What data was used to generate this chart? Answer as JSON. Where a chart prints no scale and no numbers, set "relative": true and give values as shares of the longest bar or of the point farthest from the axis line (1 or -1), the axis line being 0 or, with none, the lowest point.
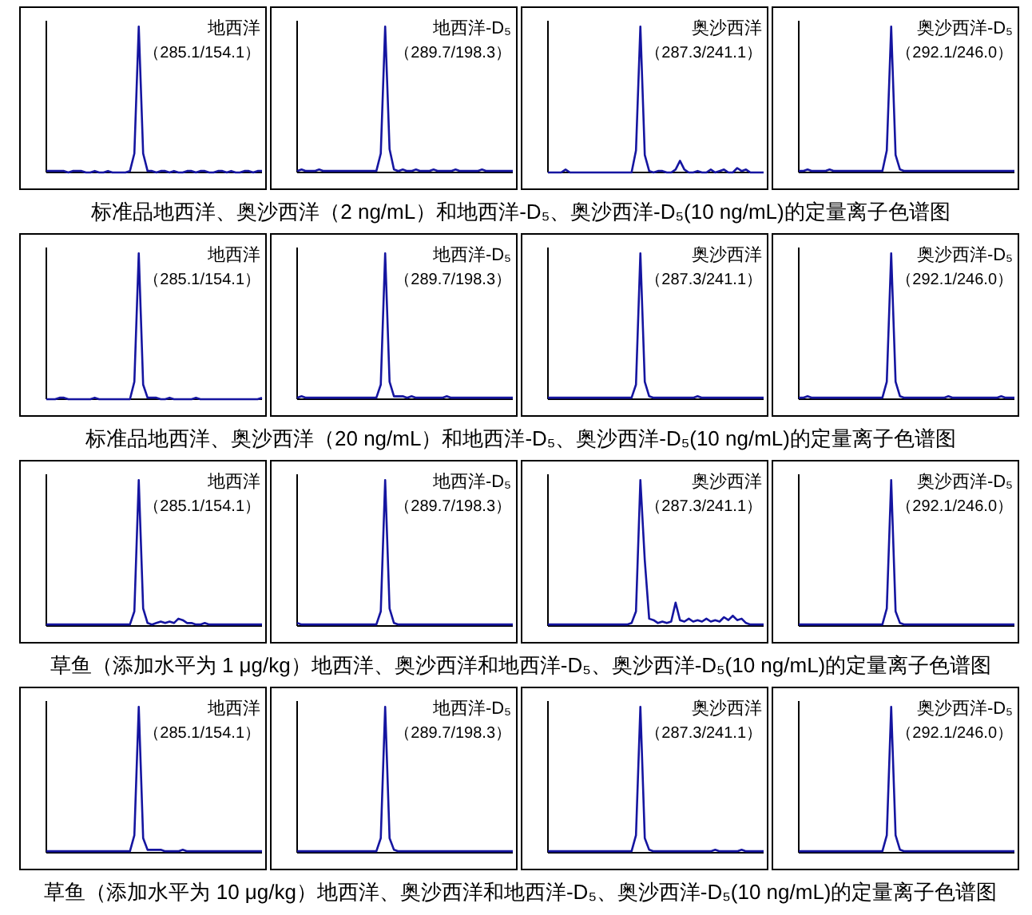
{
  "chart_data": [
    {
      "type": "line",
      "relative": true,
      "color": "#1515a0",
      "annotations": [
        "地西洋",
        "（285.1/154.1）"
      ],
      "categories": [
        null,
        null,
        null,
        null,
        null,
        null,
        null,
        null,
        null,
        null,
        null,
        null,
        null,
        null,
        null,
        null,
        null,
        null,
        null,
        null,
        null,
        null,
        null,
        null,
        null,
        null,
        null,
        null,
        null,
        null,
        null,
        null,
        null,
        null,
        null,
        null,
        null,
        null,
        null,
        null,
        null,
        null,
        null,
        null,
        null,
        null,
        null,
        null,
        null,
        null
      ],
      "values": [
        0.01,
        0.01,
        0.01,
        0.01,
        0.01,
        0,
        0.01,
        0.01,
        0.01,
        0,
        0,
        0.01,
        0,
        0,
        0.01,
        0,
        0,
        0,
        0,
        0.01,
        0.13,
        1,
        0.13,
        0.01,
        0.01,
        0,
        0.01,
        0.01,
        0,
        0.01,
        0,
        0,
        0.01,
        0.01,
        0,
        0.01,
        0.01,
        0,
        0,
        0.01,
        0.01,
        0,
        0.01,
        0,
        0,
        0.01,
        0.01,
        0,
        0.01,
        0.01
      ]
    },
    {
      "type": "line",
      "relative": true,
      "color": "#1515a0",
      "annotations": [
        "地西洋-D₅",
        "（289.7/198.3）"
      ],
      "categories": [
        null,
        null,
        null,
        null,
        null,
        null,
        null,
        null,
        null,
        null,
        null,
        null,
        null,
        null,
        null,
        null,
        null,
        null,
        null,
        null,
        null,
        null,
        null,
        null,
        null,
        null,
        null,
        null,
        null,
        null,
        null,
        null,
        null,
        null,
        null,
        null,
        null,
        null,
        null,
        null,
        null,
        null,
        null,
        null,
        null,
        null,
        null,
        null,
        null,
        null
      ],
      "values": [
        0.01,
        0.02,
        0.01,
        0.01,
        0.01,
        0.02,
        0.01,
        0.01,
        0.01,
        0.01,
        0.01,
        0.01,
        0.01,
        0.01,
        0.01,
        0.01,
        0.01,
        0.01,
        0.01,
        0.13,
        1,
        0.16,
        0.02,
        0.01,
        0.02,
        0.01,
        0.01,
        0.02,
        0.01,
        0.01,
        0.01,
        0.02,
        0.01,
        0.01,
        0.01,
        0.01,
        0.02,
        0.01,
        0.01,
        0.01,
        0.01,
        0.01,
        0.02,
        0.01,
        0.01,
        0.01,
        0.01,
        0.01,
        0.01,
        0.01
      ]
    },
    {
      "type": "line",
      "relative": true,
      "color": "#1515a0",
      "annotations": [
        "奥沙西洋",
        "（287.3/241.1）"
      ],
      "categories": [
        null,
        null,
        null,
        null,
        null,
        null,
        null,
        null,
        null,
        null,
        null,
        null,
        null,
        null,
        null,
        null,
        null,
        null,
        null,
        null,
        null,
        null,
        null,
        null,
        null,
        null,
        null,
        null,
        null,
        null,
        null,
        null,
        null,
        null,
        null,
        null,
        null,
        null,
        null,
        null,
        null,
        null,
        null,
        null,
        null,
        null,
        null,
        null,
        null,
        null
      ],
      "values": [
        0,
        0,
        0,
        0,
        0.02,
        0,
        0,
        0,
        0,
        0,
        0,
        0,
        0,
        0,
        0,
        0,
        0,
        0,
        0,
        0,
        0.15,
        1,
        0.12,
        0.01,
        0,
        0.01,
        0.01,
        0,
        0,
        0.02,
        0.08,
        0.02,
        0,
        0,
        0.01,
        0,
        0,
        0.02,
        0,
        0.01,
        0.02,
        0,
        0,
        0.03,
        0.01,
        0.02,
        0,
        0,
        0,
        0
      ]
    },
    {
      "type": "line",
      "relative": true,
      "color": "#1515a0",
      "annotations": [
        "奥沙西洋-D₅",
        "（292.1/246.0）"
      ],
      "categories": [
        null,
        null,
        null,
        null,
        null,
        null,
        null,
        null,
        null,
        null,
        null,
        null,
        null,
        null,
        null,
        null,
        null,
        null,
        null,
        null,
        null,
        null,
        null,
        null,
        null,
        null,
        null,
        null,
        null,
        null,
        null,
        null,
        null,
        null,
        null,
        null,
        null,
        null,
        null,
        null,
        null,
        null,
        null,
        null,
        null,
        null,
        null,
        null,
        null,
        null
      ],
      "values": [
        0.01,
        0.01,
        0.02,
        0.01,
        0.01,
        0.01,
        0.01,
        0.02,
        0.01,
        0.01,
        0.01,
        0.01,
        0.01,
        0.01,
        0.01,
        0.01,
        0.01,
        0.01,
        0.01,
        0.01,
        0.15,
        1,
        0.12,
        0.02,
        0.01,
        0.01,
        0.01,
        0.01,
        0.01,
        0.01,
        0.01,
        0.01,
        0.01,
        0.01,
        0.01,
        0.01,
        0.01,
        0.01,
        0.01,
        0.01,
        0.01,
        0.01,
        0.01,
        0.01,
        0.01,
        0.01,
        0.01,
        0.01,
        0.01,
        0.01
      ]
    },
    {
      "type": "other",
      "title": "标准品地西洋、奥沙西洋（2 ng/mL）和地西洋-D₅、奥沙西洋-D₅(10 ng/mL)的定量离子色谱图"
    },
    {
      "type": "line",
      "relative": true,
      "color": "#1515a0",
      "annotations": [
        "地西洋",
        "（285.1/154.1）"
      ],
      "categories": [
        null,
        null,
        null,
        null,
        null,
        null,
        null,
        null,
        null,
        null,
        null,
        null,
        null,
        null,
        null,
        null,
        null,
        null,
        null,
        null,
        null,
        null,
        null,
        null,
        null,
        null,
        null,
        null,
        null,
        null,
        null,
        null,
        null,
        null,
        null,
        null,
        null,
        null,
        null,
        null,
        null,
        null,
        null,
        null,
        null,
        null,
        null,
        null,
        null,
        null
      ],
      "values": [
        0,
        0,
        0,
        0.01,
        0.01,
        0,
        0,
        0,
        0,
        0,
        0,
        0.01,
        0,
        0,
        0,
        0,
        0,
        0,
        0,
        0,
        0.12,
        1,
        0.1,
        0.01,
        0.01,
        0.01,
        0,
        0,
        0.01,
        0,
        0,
        0,
        0,
        0,
        0.01,
        0,
        0,
        0,
        0,
        0,
        0,
        0,
        0,
        0,
        0,
        0,
        0,
        0,
        0,
        0.01
      ]
    },
    {
      "type": "line",
      "relative": true,
      "color": "#1515a0",
      "annotations": [
        "地西洋-D₅",
        "（289.7/198.3）"
      ],
      "categories": [
        null,
        null,
        null,
        null,
        null,
        null,
        null,
        null,
        null,
        null,
        null,
        null,
        null,
        null,
        null,
        null,
        null,
        null,
        null,
        null,
        null,
        null,
        null,
        null,
        null,
        null,
        null,
        null,
        null,
        null,
        null,
        null,
        null,
        null,
        null,
        null,
        null,
        null,
        null,
        null,
        null,
        null,
        null,
        null,
        null,
        null,
        null,
        null,
        null,
        null
      ],
      "values": [
        0.01,
        0.02,
        0.01,
        0.01,
        0.01,
        0.01,
        0.01,
        0.01,
        0.01,
        0.01,
        0.01,
        0.01,
        0.01,
        0.01,
        0.01,
        0.01,
        0.01,
        0.01,
        0.01,
        0.1,
        1,
        0.12,
        0.02,
        0.02,
        0.02,
        0.01,
        0.02,
        0.01,
        0.01,
        0.01,
        0.01,
        0.01,
        0.01,
        0.01,
        0.02,
        0.01,
        0.01,
        0.01,
        0.01,
        0.01,
        0.01,
        0.01,
        0.01,
        0.01,
        0.01,
        0.01,
        0.01,
        0.01,
        0.01,
        0.01
      ]
    },
    {
      "type": "line",
      "relative": true,
      "color": "#1515a0",
      "annotations": [
        "奥沙西洋",
        "（287.3/241.1）"
      ],
      "categories": [
        null,
        null,
        null,
        null,
        null,
        null,
        null,
        null,
        null,
        null,
        null,
        null,
        null,
        null,
        null,
        null,
        null,
        null,
        null,
        null,
        null,
        null,
        null,
        null,
        null,
        null,
        null,
        null,
        null,
        null,
        null,
        null,
        null,
        null,
        null,
        null,
        null,
        null,
        null,
        null,
        null,
        null,
        null,
        null,
        null,
        null,
        null,
        null,
        null,
        null
      ],
      "values": [
        0.01,
        0.01,
        0.01,
        0.01,
        0.01,
        0.01,
        0.01,
        0.01,
        0.01,
        0.01,
        0.01,
        0.01,
        0.01,
        0.01,
        0.01,
        0.01,
        0.01,
        0.01,
        0.01,
        0.01,
        0.1,
        1,
        0.12,
        0.02,
        0.01,
        0.01,
        0.01,
        0.01,
        0.01,
        0.01,
        0.01,
        0.01,
        0.01,
        0.01,
        0.02,
        0.01,
        0.01,
        0.01,
        0.01,
        0.01,
        0.01,
        0.01,
        0.01,
        0.01,
        0.01,
        0.01,
        0.01,
        0.01,
        0.01,
        0.01
      ]
    },
    {
      "type": "line",
      "relative": true,
      "color": "#1515a0",
      "annotations": [
        "奥沙西洋-D₅",
        "（292.1/246.0）"
      ],
      "categories": [
        null,
        null,
        null,
        null,
        null,
        null,
        null,
        null,
        null,
        null,
        null,
        null,
        null,
        null,
        null,
        null,
        null,
        null,
        null,
        null,
        null,
        null,
        null,
        null,
        null,
        null,
        null,
        null,
        null,
        null,
        null,
        null,
        null,
        null,
        null,
        null,
        null,
        null,
        null,
        null,
        null,
        null,
        null,
        null,
        null,
        null,
        null,
        null,
        null,
        null
      ],
      "values": [
        0.01,
        0.01,
        0.02,
        0.01,
        0.01,
        0.01,
        0.01,
        0.01,
        0.01,
        0.01,
        0.01,
        0.01,
        0.01,
        0.01,
        0.01,
        0.01,
        0.01,
        0.01,
        0.01,
        0.01,
        0.12,
        1,
        0.12,
        0.02,
        0.01,
        0.01,
        0.01,
        0.01,
        0.01,
        0.01,
        0.01,
        0.01,
        0.01,
        0.01,
        0.02,
        0.01,
        0.01,
        0.01,
        0.01,
        0.01,
        0.01,
        0.01,
        0.01,
        0.01,
        0.01,
        0.01,
        0.02,
        0.01,
        0.01,
        0.01
      ]
    },
    {
      "type": "other",
      "title": "标准品地西洋、奥沙西洋（20 ng/mL）和地西洋-D₅、奥沙西洋-D₅(10 ng/mL)的定量离子色谱图"
    },
    {
      "type": "line",
      "relative": true,
      "color": "#1515a0",
      "annotations": [
        "地西洋",
        "（285.1/154.1）"
      ],
      "categories": [
        null,
        null,
        null,
        null,
        null,
        null,
        null,
        null,
        null,
        null,
        null,
        null,
        null,
        null,
        null,
        null,
        null,
        null,
        null,
        null,
        null,
        null,
        null,
        null,
        null,
        null,
        null,
        null,
        null,
        null,
        null,
        null,
        null,
        null,
        null,
        null,
        null,
        null,
        null,
        null,
        null,
        null,
        null,
        null,
        null,
        null,
        null,
        null,
        null,
        null
      ],
      "values": [
        0.01,
        0.01,
        0.01,
        0.01,
        0.01,
        0.01,
        0.01,
        0.01,
        0.01,
        0.01,
        0.01,
        0.01,
        0.01,
        0.01,
        0.01,
        0.01,
        0.01,
        0.01,
        0.01,
        0.01,
        0.1,
        1,
        0.12,
        0.02,
        0.01,
        0.02,
        0.03,
        0.02,
        0.03,
        0.02,
        0.05,
        0.04,
        0.02,
        0.02,
        0.01,
        0.01,
        0.02,
        0.01,
        0.01,
        0.01,
        0.01,
        0.01,
        0.01,
        0.01,
        0.01,
        0.01,
        0.01,
        0.01,
        0.01,
        0.01
      ]
    },
    {
      "type": "line",
      "relative": true,
      "color": "#1515a0",
      "annotations": [
        "地西洋-D₅",
        "（289.7/198.3）"
      ],
      "categories": [
        null,
        null,
        null,
        null,
        null,
        null,
        null,
        null,
        null,
        null,
        null,
        null,
        null,
        null,
        null,
        null,
        null,
        null,
        null,
        null,
        null,
        null,
        null,
        null,
        null,
        null,
        null,
        null,
        null,
        null,
        null,
        null,
        null,
        null,
        null,
        null,
        null,
        null,
        null,
        null,
        null,
        null,
        null,
        null,
        null,
        null,
        null,
        null,
        null,
        null
      ],
      "values": [
        0.02,
        0.01,
        0.01,
        0.01,
        0.01,
        0.01,
        0.01,
        0.01,
        0.01,
        0.01,
        0.01,
        0.01,
        0.01,
        0.01,
        0.01,
        0.01,
        0.01,
        0.01,
        0.01,
        0.1,
        1,
        0.12,
        0.02,
        0.01,
        0.01,
        0.01,
        0.01,
        0.01,
        0.01,
        0.01,
        0.01,
        0.01,
        0.01,
        0.01,
        0.01,
        0.01,
        0.01,
        0.01,
        0.01,
        0.01,
        0.01,
        0.01,
        0.01,
        0.01,
        0.01,
        0.01,
        0.01,
        0.01,
        0.01,
        0.01
      ]
    },
    {
      "type": "line",
      "relative": true,
      "color": "#1515a0",
      "annotations": [
        "奥沙西洋",
        "（287.3/241.1）"
      ],
      "categories": [
        null,
        null,
        null,
        null,
        null,
        null,
        null,
        null,
        null,
        null,
        null,
        null,
        null,
        null,
        null,
        null,
        null,
        null,
        null,
        null,
        null,
        null,
        null,
        null,
        null,
        null,
        null,
        null,
        null,
        null,
        null,
        null,
        null,
        null,
        null,
        null,
        null,
        null,
        null,
        null,
        null,
        null,
        null,
        null,
        null,
        null,
        null,
        null,
        null,
        null
      ],
      "values": [
        0.01,
        0.01,
        0.01,
        0.01,
        0.01,
        0.01,
        0.01,
        0.01,
        0.01,
        0.01,
        0.01,
        0.01,
        0.01,
        0.01,
        0.01,
        0.01,
        0.01,
        0.01,
        0.01,
        0.02,
        0.1,
        1,
        0.45,
        0.05,
        0.04,
        0.02,
        0.03,
        0.02,
        0.03,
        0.16,
        0.04,
        0.03,
        0.05,
        0.03,
        0.04,
        0.03,
        0.05,
        0.03,
        0.04,
        0.03,
        0.06,
        0.04,
        0.07,
        0.04,
        0.05,
        0.02,
        0.01,
        0.01,
        0.01,
        0.01
      ]
    },
    {
      "type": "line",
      "relative": true,
      "color": "#1515a0",
      "annotations": [
        "奥沙西洋-D₅",
        "（292.1/246.0）"
      ],
      "categories": [
        null,
        null,
        null,
        null,
        null,
        null,
        null,
        null,
        null,
        null,
        null,
        null,
        null,
        null,
        null,
        null,
        null,
        null,
        null,
        null,
        null,
        null,
        null,
        null,
        null,
        null,
        null,
        null,
        null,
        null,
        null,
        null,
        null,
        null,
        null,
        null,
        null,
        null,
        null,
        null,
        null,
        null,
        null,
        null,
        null,
        null,
        null,
        null,
        null,
        null
      ],
      "values": [
        0.01,
        0.01,
        0.01,
        0.01,
        0.01,
        0.01,
        0.01,
        0.01,
        0.01,
        0.01,
        0.01,
        0.01,
        0.01,
        0.01,
        0.01,
        0.01,
        0.01,
        0.01,
        0.01,
        0.01,
        0.12,
        1,
        0.1,
        0.02,
        0.01,
        0.01,
        0.01,
        0.01,
        0.01,
        0.01,
        0.01,
        0.01,
        0.01,
        0.01,
        0.01,
        0.01,
        0.01,
        0.01,
        0.01,
        0.01,
        0.01,
        0.01,
        0.01,
        0.01,
        0.01,
        0.01,
        0.01,
        0.01,
        0.01,
        0.01
      ]
    },
    {
      "type": "other",
      "title": "草鱼（添加水平为 1 μg/kg）地西洋、奥沙西洋和地西洋-D₅、奥沙西洋-D₅(10 ng/mL)的定量离子色谱图"
    },
    {
      "type": "line",
      "relative": true,
      "color": "#1515a0",
      "annotations": [
        "地西洋",
        "（285.1/154.1）"
      ],
      "categories": [
        null,
        null,
        null,
        null,
        null,
        null,
        null,
        null,
        null,
        null,
        null,
        null,
        null,
        null,
        null,
        null,
        null,
        null,
        null,
        null,
        null,
        null,
        null,
        null,
        null,
        null,
        null,
        null,
        null,
        null,
        null,
        null,
        null,
        null,
        null,
        null,
        null,
        null,
        null,
        null,
        null,
        null,
        null,
        null,
        null,
        null,
        null,
        null,
        null,
        null
      ],
      "values": [
        0.01,
        0.01,
        0.01,
        0.01,
        0.01,
        0.01,
        0.01,
        0.01,
        0.01,
        0.01,
        0.01,
        0.01,
        0.01,
        0.01,
        0.01,
        0.01,
        0.01,
        0.01,
        0.01,
        0.01,
        0.12,
        1,
        0.1,
        0.02,
        0.02,
        0.02,
        0.02,
        0.01,
        0.01,
        0.01,
        0.01,
        0.02,
        0.01,
        0.01,
        0.01,
        0.01,
        0.01,
        0.01,
        0.01,
        0.01,
        0.01,
        0.01,
        0.01,
        0.01,
        0.01,
        0.01,
        0.01,
        0.01,
        0.01,
        0.01
      ]
    },
    {
      "type": "line",
      "relative": true,
      "color": "#1515a0",
      "annotations": [
        "地西洋-D₅",
        "（289.7/198.3）"
      ],
      "categories": [
        null,
        null,
        null,
        null,
        null,
        null,
        null,
        null,
        null,
        null,
        null,
        null,
        null,
        null,
        null,
        null,
        null,
        null,
        null,
        null,
        null,
        null,
        null,
        null,
        null,
        null,
        null,
        null,
        null,
        null,
        null,
        null,
        null,
        null,
        null,
        null,
        null,
        null,
        null,
        null,
        null,
        null,
        null,
        null,
        null,
        null,
        null,
        null,
        null,
        null
      ],
      "values": [
        0.01,
        0.01,
        0.01,
        0.01,
        0.01,
        0.01,
        0.01,
        0.01,
        0.01,
        0.01,
        0.01,
        0.01,
        0.01,
        0.01,
        0.01,
        0.01,
        0.01,
        0.01,
        0.01,
        0.1,
        1,
        0.1,
        0.02,
        0.01,
        0.01,
        0.01,
        0.01,
        0.01,
        0.01,
        0.01,
        0.01,
        0.01,
        0.01,
        0.01,
        0.01,
        0.01,
        0.01,
        0.01,
        0.01,
        0.01,
        0.01,
        0.01,
        0.01,
        0.01,
        0.01,
        0.01,
        0.01,
        0.01,
        0.01,
        0.01
      ]
    },
    {
      "type": "line",
      "relative": true,
      "color": "#1515a0",
      "annotations": [
        "奥沙西洋",
        "（287.3/241.1）"
      ],
      "categories": [
        null,
        null,
        null,
        null,
        null,
        null,
        null,
        null,
        null,
        null,
        null,
        null,
        null,
        null,
        null,
        null,
        null,
        null,
        null,
        null,
        null,
        null,
        null,
        null,
        null,
        null,
        null,
        null,
        null,
        null,
        null,
        null,
        null,
        null,
        null,
        null,
        null,
        null,
        null,
        null,
        null,
        null,
        null,
        null,
        null,
        null,
        null,
        null,
        null,
        null
      ],
      "values": [
        0.01,
        0.01,
        0.01,
        0.01,
        0.01,
        0.01,
        0.01,
        0.01,
        0.01,
        0.01,
        0.01,
        0.01,
        0.01,
        0.01,
        0.01,
        0.01,
        0.01,
        0.01,
        0.01,
        0.01,
        0.12,
        1,
        0.1,
        0.02,
        0.01,
        0.01,
        0.01,
        0.01,
        0.01,
        0.01,
        0.01,
        0.01,
        0.01,
        0.01,
        0.01,
        0.01,
        0.01,
        0.01,
        0.02,
        0.01,
        0.01,
        0.01,
        0.01,
        0.01,
        0.02,
        0.01,
        0.01,
        0.01,
        0.01,
        0.01
      ]
    },
    {
      "type": "line",
      "relative": true,
      "color": "#1515a0",
      "annotations": [
        "奥沙西洋-D₅",
        "（292.1/246.0）"
      ],
      "categories": [
        null,
        null,
        null,
        null,
        null,
        null,
        null,
        null,
        null,
        null,
        null,
        null,
        null,
        null,
        null,
        null,
        null,
        null,
        null,
        null,
        null,
        null,
        null,
        null,
        null,
        null,
        null,
        null,
        null,
        null,
        null,
        null,
        null,
        null,
        null,
        null,
        null,
        null,
        null,
        null,
        null,
        null,
        null,
        null,
        null,
        null,
        null,
        null,
        null,
        null
      ],
      "values": [
        0.01,
        0.01,
        0.01,
        0.01,
        0.01,
        0.01,
        0.01,
        0.01,
        0.01,
        0.01,
        0.01,
        0.01,
        0.01,
        0.01,
        0.01,
        0.01,
        0.01,
        0.01,
        0.01,
        0.01,
        0.12,
        1,
        0.12,
        0.02,
        0.01,
        0.01,
        0.01,
        0.01,
        0.01,
        0.01,
        0.01,
        0.01,
        0.01,
        0.01,
        0.01,
        0.01,
        0.01,
        0.01,
        0.01,
        0.01,
        0.01,
        0.01,
        0.01,
        0.01,
        0.01,
        0.01,
        0.01,
        0.01,
        0.01,
        0.01
      ]
    },
    {
      "type": "other",
      "title": "草鱼（添加水平为 10 μg/kg）地西洋、奥沙西洋和地西洋-D₅、奥沙西洋-D₅(10 ng/mL)的定量离子色谱图"
    }
  ]
}
